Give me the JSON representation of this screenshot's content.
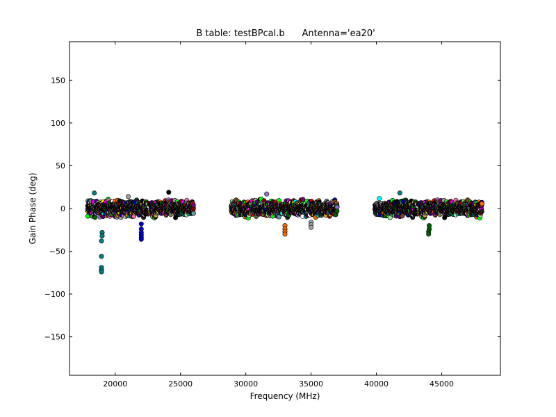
{
  "chart_data": {
    "type": "scatter",
    "title": "B table: testBPcal.b      Antenna='ea20'",
    "xlabel": "Frequency (MHz)",
    "ylabel": "Gain Phase (deg)",
    "xlim": [
      16500,
      49500
    ],
    "ylim": [
      -195,
      195
    ],
    "xticks": [
      20000,
      25000,
      30000,
      35000,
      40000,
      45000
    ],
    "xtick_labels": [
      "20000",
      "25000",
      "30000",
      "35000",
      "40000",
      "45000"
    ],
    "yticks": [
      150,
      100,
      50,
      0,
      -50,
      -100,
      -150
    ],
    "ytick_labels": [
      "150",
      "100",
      "50",
      "0",
      "−50",
      "−100",
      "−150"
    ],
    "grid": false,
    "legend": "none",
    "frequency_ranges_mhz": [
      [
        17900,
        26000
      ],
      [
        28900,
        37000
      ],
      [
        39900,
        48100
      ]
    ],
    "typical_phase_range_deg": [
      -12,
      12
    ],
    "notable_points": [
      {
        "x": 19000,
        "y": -28
      },
      {
        "x": 19000,
        "y": -32
      },
      {
        "x": 18950,
        "y": -38
      },
      {
        "x": 18950,
        "y": -56
      },
      {
        "x": 18950,
        "y": -69
      },
      {
        "x": 18950,
        "y": -72
      },
      {
        "x": 18950,
        "y": -74
      },
      {
        "x": 22000,
        "y": -18
      },
      {
        "x": 22000,
        "y": -24
      },
      {
        "x": 22000,
        "y": -28
      },
      {
        "x": 22000,
        "y": -31
      },
      {
        "x": 22000,
        "y": -34
      },
      {
        "x": 22000,
        "y": -36
      },
      {
        "x": 33000,
        "y": -20
      },
      {
        "x": 33000,
        "y": -24
      },
      {
        "x": 33000,
        "y": -27
      },
      {
        "x": 33000,
        "y": -30
      },
      {
        "x": 35000,
        "y": -16
      },
      {
        "x": 35000,
        "y": -19
      },
      {
        "x": 35000,
        "y": -22
      },
      {
        "x": 44050,
        "y": -20
      },
      {
        "x": 44050,
        "y": -24
      },
      {
        "x": 44000,
        "y": -27
      },
      {
        "x": 44000,
        "y": -30
      },
      {
        "x": 24100,
        "y": 19
      },
      {
        "x": 18400,
        "y": 18
      },
      {
        "x": 21000,
        "y": 14
      },
      {
        "x": 31600,
        "y": 17
      },
      {
        "x": 41800,
        "y": 18
      }
    ],
    "notable_colors": [
      "#008080",
      "#0000cc",
      "#ff6a00",
      "#a0a0a0",
      "#006400"
    ],
    "palette": [
      "#000000",
      "#1f1f1f",
      "#8b4513",
      "#006400",
      "#008080",
      "#0000cc",
      "#800080",
      "#ff00ff",
      "#ff0000",
      "#ff6a00",
      "#ffff00",
      "#00ff00",
      "#00ffff",
      "#90ee90",
      "#a0a0a0",
      "#ffffff",
      "#4b0082",
      "#556b2f",
      "#2f4f4f",
      "#8b0000",
      "#daa520",
      "#9370db",
      "#ff69b4",
      "#5f9ea0"
    ]
  }
}
